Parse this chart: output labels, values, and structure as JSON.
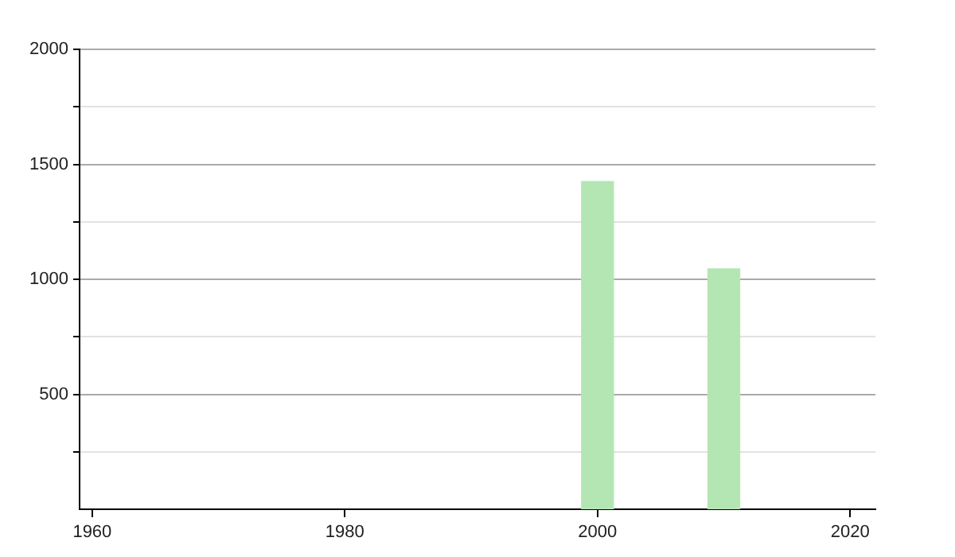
{
  "chart_data": {
    "type": "bar",
    "x": [
      2000,
      2010
    ],
    "values": [
      1425,
      1045
    ],
    "color": "#b3e6b3",
    "xlim": [
      1959,
      2022
    ],
    "xticks": [
      1960,
      1980,
      2000,
      2020
    ],
    "ylim": [
      0,
      2000
    ],
    "yticks": [
      {
        "value": 250,
        "label": null
      },
      500,
      {
        "value": 750,
        "label": null
      },
      1000,
      {
        "value": 1250,
        "label": null
      },
      1500,
      {
        "value": 1750,
        "label": null
      },
      2000
    ],
    "grid": "y"
  }
}
